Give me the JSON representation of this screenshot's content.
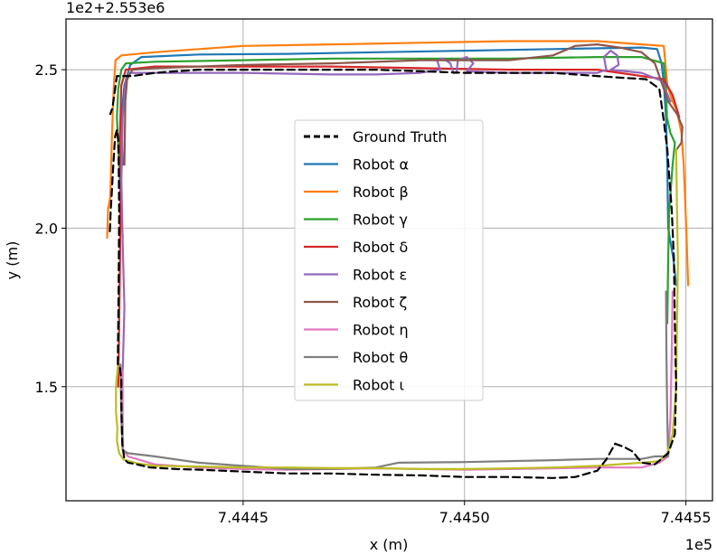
{
  "chart_data": {
    "type": "line",
    "title": "",
    "xlabel": "x (m)",
    "ylabel": "y (m)",
    "x_offset_text": "1e5",
    "y_offset_text": "1e2+2.553e6",
    "xlim": [
      744.41,
      744.556
    ],
    "ylim": [
      1.14,
      2.66
    ],
    "x_ticks": [
      744.45,
      744.5,
      744.55
    ],
    "x_tick_labels": [
      "7.4445",
      "7.4450",
      "7.4455"
    ],
    "y_ticks": [
      1.5,
      2.0,
      2.5
    ],
    "y_tick_labels": [
      "1.5",
      "2.0",
      "2.5"
    ],
    "grid": true,
    "legend_position": "center",
    "series": [
      {
        "name": "Ground Truth",
        "color": "#000000",
        "dash": "8,5",
        "width": 3,
        "points": [
          [
            744.4199,
            1.99
          ],
          [
            744.4201,
            2.06
          ],
          [
            744.4203,
            2.1
          ],
          [
            744.4206,
            2.18
          ],
          [
            744.4209,
            2.25
          ],
          [
            744.4211,
            2.29
          ],
          [
            744.4215,
            2.31
          ],
          [
            744.4218,
            2.28
          ],
          [
            744.4219,
            2.2
          ],
          [
            744.422,
            2.05
          ],
          [
            744.4219,
            1.85
          ],
          [
            744.4218,
            1.7
          ],
          [
            744.4217,
            1.57
          ],
          [
            744.4222,
            1.56
          ],
          [
            744.4225,
            1.52
          ],
          [
            744.4225,
            1.45
          ],
          [
            744.4226,
            1.38
          ],
          [
            744.4227,
            1.32
          ],
          [
            744.4232,
            1.27
          ],
          [
            744.424,
            1.26
          ],
          [
            744.426,
            1.255
          ],
          [
            744.429,
            1.245
          ],
          [
            744.435,
            1.24
          ],
          [
            744.44,
            1.238
          ],
          [
            744.45,
            1.232
          ],
          [
            744.46,
            1.226
          ],
          [
            744.47,
            1.226
          ],
          [
            744.48,
            1.222
          ],
          [
            744.49,
            1.22
          ],
          [
            744.5,
            1.215
          ],
          [
            744.51,
            1.215
          ],
          [
            744.52,
            1.212
          ],
          [
            744.525,
            1.215
          ],
          [
            744.53,
            1.235
          ],
          [
            744.532,
            1.27
          ],
          [
            744.534,
            1.32
          ],
          [
            744.536,
            1.31
          ],
          [
            744.538,
            1.295
          ],
          [
            744.54,
            1.26
          ],
          [
            744.543,
            1.255
          ],
          [
            744.546,
            1.29
          ],
          [
            744.5475,
            1.35
          ],
          [
            744.5478,
            1.5
          ],
          [
            744.5475,
            1.7
          ],
          [
            744.5473,
            1.9
          ],
          [
            744.5468,
            2.06
          ],
          [
            744.5462,
            2.17
          ],
          [
            744.5458,
            2.25
          ],
          [
            744.545,
            2.34
          ],
          [
            744.544,
            2.44
          ],
          [
            744.541,
            2.47
          ],
          [
            744.535,
            2.475
          ],
          [
            744.52,
            2.49
          ],
          [
            744.5,
            2.49
          ],
          [
            744.48,
            2.5
          ],
          [
            744.46,
            2.5
          ],
          [
            744.44,
            2.5
          ],
          [
            744.43,
            2.49
          ],
          [
            744.425,
            2.48
          ],
          [
            744.4215,
            2.48
          ],
          [
            744.4205,
            2.38
          ],
          [
            744.42,
            2.36
          ]
        ]
      },
      {
        "name": "Robot α",
        "color": "#1f77b4",
        "dash": "",
        "width": 2.2,
        "points": [
          [
            744.4228,
            2.2
          ],
          [
            744.4225,
            2.35
          ],
          [
            744.4232,
            2.45
          ],
          [
            744.4245,
            2.515
          ],
          [
            744.427,
            2.54
          ],
          [
            744.44,
            2.548
          ],
          [
            744.46,
            2.55
          ],
          [
            744.48,
            2.555
          ],
          [
            744.5,
            2.56
          ],
          [
            744.52,
            2.565
          ],
          [
            744.54,
            2.57
          ],
          [
            744.5435,
            2.565
          ],
          [
            744.5445,
            2.52
          ],
          [
            744.545,
            2.46
          ],
          [
            744.5455,
            2.35
          ],
          [
            744.5458,
            2.2
          ],
          [
            744.546,
            2.0
          ],
          [
            744.5472,
            1.9
          ],
          [
            744.5478,
            1.82
          ]
        ]
      },
      {
        "name": "Robot β",
        "color": "#ff7f0e",
        "dash": "",
        "width": 2.2,
        "points": [
          [
            744.4193,
            1.97
          ],
          [
            744.4195,
            2.06
          ],
          [
            744.42,
            2.1
          ],
          [
            744.4204,
            2.3
          ],
          [
            744.4208,
            2.45
          ],
          [
            744.4212,
            2.53
          ],
          [
            744.4225,
            2.545
          ],
          [
            744.43,
            2.555
          ],
          [
            744.45,
            2.575
          ],
          [
            744.47,
            2.58
          ],
          [
            744.49,
            2.585
          ],
          [
            744.51,
            2.59
          ],
          [
            744.53,
            2.59
          ],
          [
            744.54,
            2.58
          ],
          [
            744.545,
            2.575
          ],
          [
            744.5455,
            2.5
          ],
          [
            744.5458,
            2.45
          ],
          [
            744.547,
            2.4
          ],
          [
            744.548,
            2.37
          ],
          [
            744.549,
            2.3
          ],
          [
            744.5495,
            2.2
          ],
          [
            744.5498,
            2.1
          ],
          [
            744.5502,
            1.95
          ],
          [
            744.5505,
            1.82
          ]
        ]
      },
      {
        "name": "Robot γ",
        "color": "#2ca02c",
        "dash": "",
        "width": 2.2,
        "points": [
          [
            744.4228,
            1.97
          ],
          [
            744.4225,
            2.05
          ],
          [
            744.4215,
            2.35
          ],
          [
            744.4218,
            2.44
          ],
          [
            744.4225,
            2.5
          ],
          [
            744.4235,
            2.52
          ],
          [
            744.43,
            2.525
          ],
          [
            744.45,
            2.53
          ],
          [
            744.47,
            2.535
          ],
          [
            744.49,
            2.535
          ],
          [
            744.51,
            2.535
          ],
          [
            744.53,
            2.54
          ],
          [
            744.54,
            2.54
          ],
          [
            744.545,
            2.52
          ],
          [
            744.5455,
            2.45
          ],
          [
            744.5457,
            2.35
          ],
          [
            744.5465,
            2.3
          ],
          [
            744.5475,
            2.27
          ],
          [
            744.547,
            2.2
          ],
          [
            744.5462,
            2.05
          ],
          [
            744.546,
            1.9
          ],
          [
            744.5458,
            1.7
          ]
        ]
      },
      {
        "name": "Robot δ",
        "color": "#d62728",
        "dash": "",
        "width": 2.2,
        "points": [
          [
            744.4218,
            1.5
          ],
          [
            744.422,
            1.7
          ],
          [
            744.4222,
            1.9
          ],
          [
            744.4223,
            2.1
          ],
          [
            744.4222,
            2.3
          ],
          [
            744.4225,
            2.45
          ],
          [
            744.4235,
            2.5
          ],
          [
            744.43,
            2.51
          ],
          [
            744.45,
            2.51
          ],
          [
            744.47,
            2.51
          ],
          [
            744.49,
            2.505
          ],
          [
            744.51,
            2.5
          ],
          [
            744.53,
            2.5
          ],
          [
            744.54,
            2.48
          ],
          [
            744.545,
            2.47
          ],
          [
            744.547,
            2.42
          ],
          [
            744.5485,
            2.35
          ]
        ]
      },
      {
        "name": "Robot ε",
        "color": "#9467bd",
        "dash": "",
        "width": 2.2,
        "points": [
          [
            744.4228,
            1.55
          ],
          [
            744.4232,
            1.75
          ],
          [
            744.4228,
            1.95
          ],
          [
            744.4225,
            2.15
          ],
          [
            744.4228,
            2.35
          ],
          [
            744.4235,
            2.46
          ],
          [
            744.4245,
            2.49
          ],
          [
            744.43,
            2.49
          ],
          [
            744.45,
            2.49
          ],
          [
            744.47,
            2.485
          ],
          [
            744.48,
            2.485
          ],
          [
            744.49,
            2.49
          ],
          [
            744.4945,
            2.5
          ],
          [
            744.4938,
            2.53
          ],
          [
            744.4952,
            2.535
          ],
          [
            744.4968,
            2.52
          ],
          [
            744.4975,
            2.49
          ],
          [
            744.4982,
            2.49
          ],
          [
            744.4985,
            2.53
          ],
          [
            744.5005,
            2.54
          ],
          [
            744.502,
            2.52
          ],
          [
            744.5005,
            2.495
          ],
          [
            744.51,
            2.49
          ],
          [
            744.52,
            2.49
          ],
          [
            744.53,
            2.49
          ],
          [
            744.532,
            2.5
          ],
          [
            744.5315,
            2.54
          ],
          [
            744.533,
            2.56
          ],
          [
            744.5345,
            2.545
          ],
          [
            744.5348,
            2.515
          ],
          [
            744.533,
            2.5
          ],
          [
            744.54,
            2.49
          ],
          [
            744.5445,
            2.465
          ],
          [
            744.5465,
            2.4
          ]
        ]
      },
      {
        "name": "Robot ζ",
        "color": "#8c564b",
        "dash": "",
        "width": 2.2,
        "points": [
          [
            744.4232,
            2.2
          ],
          [
            744.4234,
            2.4
          ],
          [
            744.4238,
            2.47
          ],
          [
            744.425,
            2.5
          ],
          [
            744.43,
            2.505
          ],
          [
            744.45,
            2.515
          ],
          [
            744.47,
            2.52
          ],
          [
            744.49,
            2.53
          ],
          [
            744.51,
            2.53
          ],
          [
            744.52,
            2.545
          ],
          [
            744.525,
            2.575
          ],
          [
            744.53,
            2.58
          ],
          [
            744.535,
            2.57
          ],
          [
            744.54,
            2.555
          ],
          [
            744.543,
            2.52
          ],
          [
            744.544,
            2.48
          ],
          [
            744.545,
            2.44
          ],
          [
            744.546,
            2.4
          ],
          [
            744.548,
            2.36
          ],
          [
            744.5492,
            2.32
          ],
          [
            744.549,
            2.27
          ],
          [
            744.548,
            2.25
          ]
        ]
      },
      {
        "name": "Robot η",
        "color": "#e377c2",
        "dash": "",
        "width": 2.2,
        "points": [
          [
            744.4228,
            1.55
          ],
          [
            744.4228,
            1.4
          ],
          [
            744.4229,
            1.3
          ],
          [
            744.424,
            1.28
          ],
          [
            744.43,
            1.255
          ],
          [
            744.44,
            1.245
          ],
          [
            744.45,
            1.24
          ],
          [
            744.46,
            1.238
          ],
          [
            744.47,
            1.24
          ],
          [
            744.48,
            1.242
          ],
          [
            744.49,
            1.24
          ],
          [
            744.5,
            1.238
          ],
          [
            744.51,
            1.24
          ],
          [
            744.52,
            1.242
          ],
          [
            744.53,
            1.245
          ],
          [
            744.54,
            1.245
          ],
          [
            744.544,
            1.26
          ],
          [
            744.546,
            1.28
          ],
          [
            744.5465,
            1.4
          ],
          [
            744.5468,
            1.6
          ],
          [
            744.547,
            1.8
          ]
        ]
      },
      {
        "name": "Robot θ",
        "color": "#7f7f7f",
        "dash": "",
        "width": 2.2,
        "points": [
          [
            744.4223,
            1.57
          ],
          [
            744.4225,
            1.4
          ],
          [
            744.4228,
            1.3
          ],
          [
            744.424,
            1.29
          ],
          [
            744.43,
            1.28
          ],
          [
            744.44,
            1.26
          ],
          [
            744.45,
            1.25
          ],
          [
            744.46,
            1.24
          ],
          [
            744.47,
            1.24
          ],
          [
            744.48,
            1.245
          ],
          [
            744.485,
            1.26
          ],
          [
            744.5,
            1.262
          ],
          [
            744.52,
            1.268
          ],
          [
            744.53,
            1.272
          ],
          [
            744.54,
            1.272
          ],
          [
            744.543,
            1.28
          ],
          [
            744.546,
            1.28
          ],
          [
            744.5458,
            1.4
          ],
          [
            744.5456,
            1.6
          ],
          [
            744.5455,
            1.8
          ]
        ]
      },
      {
        "name": "Robot ι",
        "color": "#bcbd22",
        "dash": "",
        "width": 2.2,
        "points": [
          [
            744.4218,
            1.58
          ],
          [
            744.4213,
            1.5
          ],
          [
            744.4213,
            1.42
          ],
          [
            744.4216,
            1.37
          ],
          [
            744.4215,
            1.33
          ],
          [
            744.422,
            1.29
          ],
          [
            744.423,
            1.27
          ],
          [
            744.426,
            1.258
          ],
          [
            744.43,
            1.25
          ],
          [
            744.44,
            1.248
          ],
          [
            744.45,
            1.245
          ],
          [
            744.46,
            1.245
          ],
          [
            744.47,
            1.243
          ],
          [
            744.48,
            1.243
          ],
          [
            744.49,
            1.24
          ],
          [
            744.5,
            1.24
          ],
          [
            744.51,
            1.242
          ],
          [
            744.52,
            1.245
          ],
          [
            744.53,
            1.25
          ],
          [
            744.54,
            1.26
          ],
          [
            744.544,
            1.265
          ],
          [
            744.5458,
            1.29
          ],
          [
            744.547,
            1.35
          ],
          [
            744.5478,
            1.5
          ],
          [
            744.548,
            1.7
          ],
          [
            744.5482,
            1.9
          ],
          [
            744.548,
            2.05
          ],
          [
            744.5478,
            2.25
          ]
        ]
      }
    ]
  }
}
